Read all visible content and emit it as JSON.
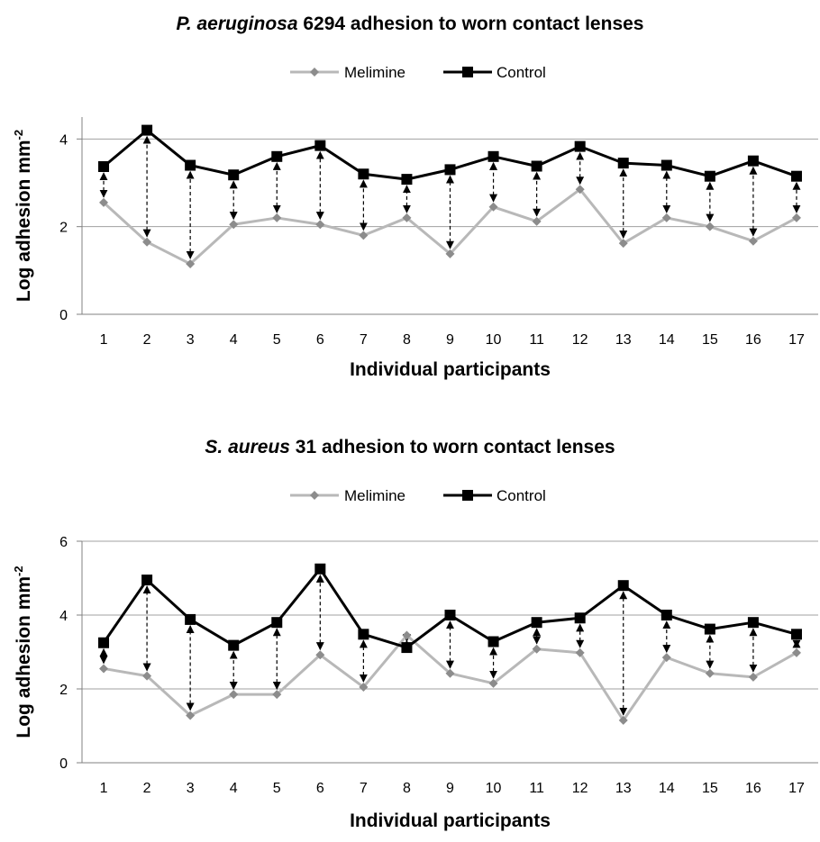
{
  "chart_data": [
    {
      "type": "line",
      "title_italic": "P. aeruginosa",
      "title_rest": " 6294 adhesion to worn contact lenses",
      "xlabel": "Individual participants",
      "ylabel": "Log adhesion mm",
      "ylabel_sup": "-2",
      "categories": [
        "1",
        "2",
        "3",
        "4",
        "5",
        "6",
        "7",
        "8",
        "9",
        "10",
        "11",
        "12",
        "13",
        "14",
        "15",
        "16",
        "17"
      ],
      "ylim": [
        0,
        4.5
      ],
      "yticks": [
        0,
        2,
        4
      ],
      "grid": true,
      "legend_position": "top-center",
      "series": [
        {
          "name": "Melimine",
          "color": "#b8b8b8",
          "marker_color": "#8c8c8c",
          "marker": "diamond",
          "values": [
            2.55,
            1.65,
            1.15,
            2.05,
            2.2,
            2.05,
            1.8,
            2.2,
            1.38,
            2.45,
            2.12,
            2.85,
            1.62,
            2.2,
            2.0,
            1.67,
            2.2
          ]
        },
        {
          "name": "Control",
          "color": "#000000",
          "marker_color": "#000000",
          "marker": "square",
          "values": [
            3.37,
            4.2,
            3.4,
            3.18,
            3.6,
            3.85,
            3.2,
            3.08,
            3.3,
            3.6,
            3.38,
            3.83,
            3.45,
            3.4,
            3.15,
            3.5,
            3.15
          ]
        }
      ],
      "annotations": "dashed double-headed arrows connect Melimine and Control values for each participant"
    },
    {
      "type": "line",
      "title_italic": "S. aureus",
      "title_rest": " 31 adhesion to worn contact lenses",
      "xlabel": "Individual participants",
      "ylabel": "Log adhesion mm",
      "ylabel_sup": "-2",
      "categories": [
        "1",
        "2",
        "3",
        "4",
        "5",
        "6",
        "7",
        "8",
        "9",
        "10",
        "11",
        "12",
        "13",
        "14",
        "15",
        "16",
        "17"
      ],
      "ylim": [
        0,
        6
      ],
      "yticks": [
        0,
        2,
        4,
        6
      ],
      "grid": true,
      "legend_position": "top-center",
      "series": [
        {
          "name": "Melimine",
          "color": "#b8b8b8",
          "marker_color": "#8c8c8c",
          "marker": "diamond",
          "values": [
            2.55,
            2.35,
            1.28,
            1.85,
            1.85,
            2.92,
            2.05,
            3.45,
            2.42,
            2.15,
            3.08,
            2.98,
            1.15,
            2.85,
            2.42,
            2.32,
            2.98
          ]
        },
        {
          "name": "Control",
          "color": "#000000",
          "marker_color": "#000000",
          "marker": "square",
          "values": [
            3.25,
            4.95,
            3.88,
            3.18,
            3.8,
            5.25,
            3.48,
            3.12,
            4.0,
            3.28,
            3.8,
            3.92,
            4.8,
            4.0,
            3.62,
            3.8,
            3.48
          ]
        }
      ],
      "annotations": "dashed double-headed arrows connect Melimine and Control values for each participant"
    }
  ]
}
